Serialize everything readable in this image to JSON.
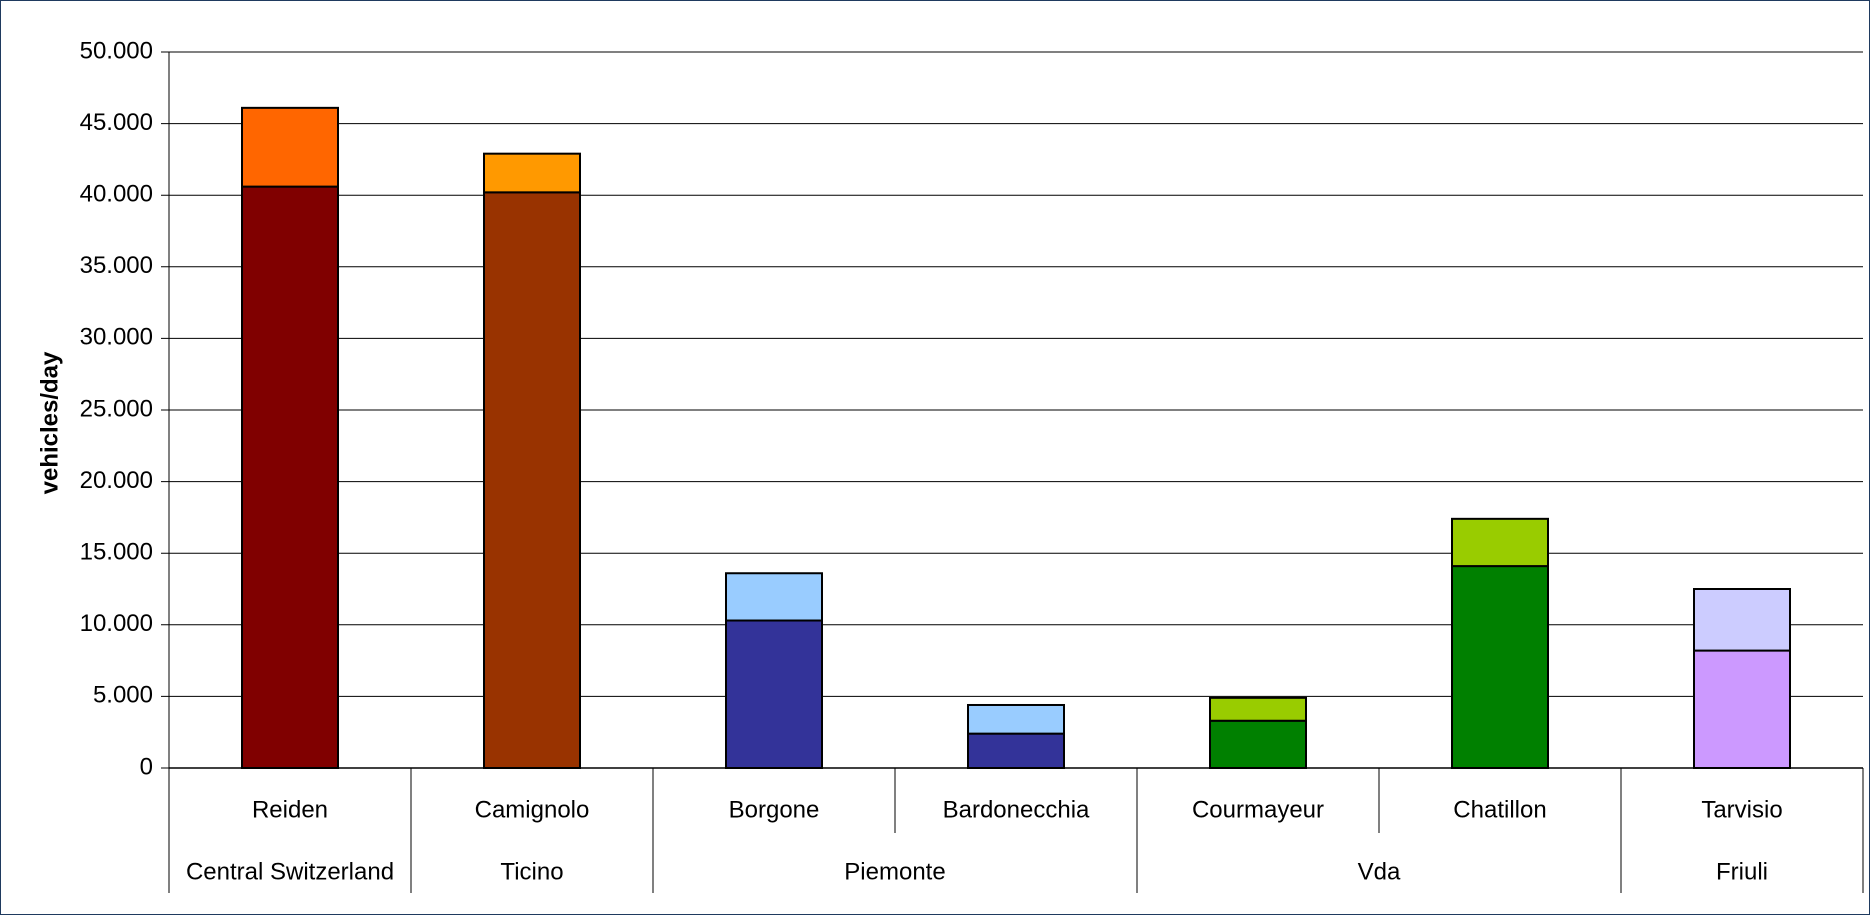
{
  "chart_data": {
    "type": "bar",
    "stacked": true,
    "ylabel": "vehicles/day",
    "ylim": [
      0,
      50000
    ],
    "yticks": [
      0,
      5000,
      10000,
      15000,
      20000,
      25000,
      30000,
      35000,
      40000,
      45000,
      50000
    ],
    "ytick_labels": [
      "0",
      "5.000",
      "10.000",
      "15.000",
      "20.000",
      "25.000",
      "30.000",
      "35.000",
      "40.000",
      "45.000",
      "50.000"
    ],
    "grid": true,
    "legend": "none",
    "categories": [
      "Reiden",
      "Camignolo",
      "Borgone",
      "Bardonecchia",
      "Courmayeur",
      "Chatillon",
      "Tarvisio"
    ],
    "groups": [
      {
        "label": "Central Switzerland",
        "span": 1
      },
      {
        "label": "Ticino",
        "span": 1
      },
      {
        "label": "Piemonte",
        "span": 2
      },
      {
        "label": "Vda",
        "span": 2
      },
      {
        "label": "Friuli",
        "span": 1
      }
    ],
    "series": [
      {
        "values": [
          40600,
          40200,
          10300,
          2400,
          3300,
          14100,
          8200
        ],
        "colors": [
          "#800000",
          "#993300",
          "#333399",
          "#333399",
          "#008000",
          "#008000",
          "#cc99ff"
        ]
      },
      {
        "values": [
          5500,
          2700,
          3300,
          2000,
          1600,
          3300,
          4300
        ],
        "colors": [
          "#ff6600",
          "#ff9900",
          "#99ccff",
          "#99ccff",
          "#99cc00",
          "#99cc00",
          "#ccccff"
        ]
      }
    ]
  }
}
